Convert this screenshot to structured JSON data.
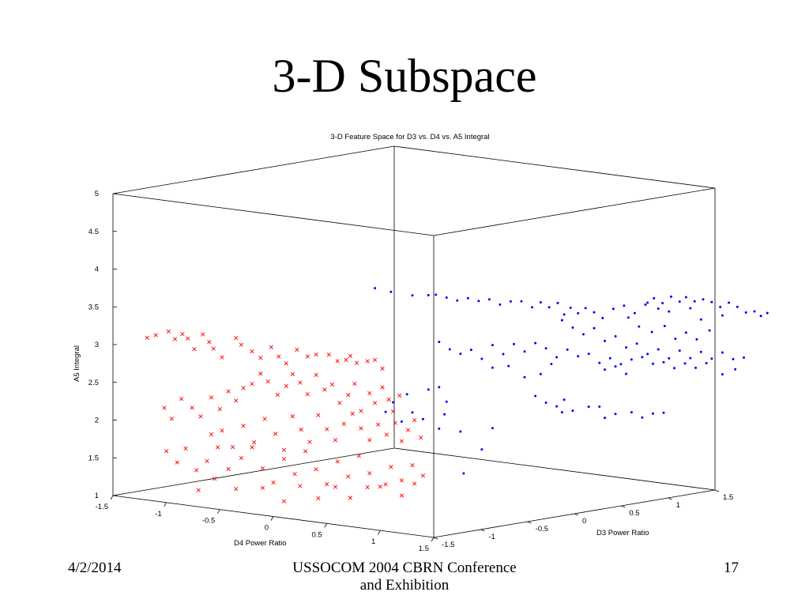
{
  "slide": {
    "title": "3-D Subspace",
    "footer_date": "4/2/2014",
    "footer_center_line1": "USSOCOM 2004 CBRN Conference",
    "footer_center_line2": "and Exhibition",
    "page_number": "17"
  },
  "chart_data": {
    "type": "scatter",
    "title": "3-D Feature Space for D3 vs. D4 vs. A5 Integral",
    "xlabel": "D4 Power Ratio",
    "ylabel": "D3 Power Ratio",
    "zlabel": "A5 Integral",
    "xlim": [
      -1.5,
      1.5
    ],
    "ylim": [
      -1.5,
      1.5
    ],
    "zlim": [
      1,
      5
    ],
    "x_ticks": [
      "-1.5",
      "-1",
      "-0.5",
      "0",
      "0.5",
      "1",
      "1.5"
    ],
    "y_ticks": [
      "-1.5",
      "-1",
      "-0.5",
      "0",
      "0.5",
      "1",
      "1.5"
    ],
    "z_ticks": [
      "1",
      "1.5",
      "2",
      "2.5",
      "3",
      "3.5",
      "4",
      "4.5",
      "5"
    ],
    "grid": false,
    "box": true,
    "colors": {
      "series_red": "#ff0000",
      "series_blue": "#0000ff"
    },
    "series": [
      {
        "marker": "x",
        "color": "#ff0000",
        "points_projected": [
          [
            -1.18,
            3.15
          ],
          [
            -1.1,
            3.2
          ],
          [
            -0.98,
            3.27
          ],
          [
            -0.92,
            3.18
          ],
          [
            -0.85,
            3.26
          ],
          [
            -0.8,
            3.21
          ],
          [
            -0.74,
            3.08
          ],
          [
            -0.66,
            3.29
          ],
          [
            -0.6,
            3.2
          ],
          [
            -0.56,
            3.12
          ],
          [
            -0.48,
            3.02
          ],
          [
            -0.35,
            3.3
          ],
          [
            -0.3,
            3.22
          ],
          [
            -0.2,
            3.15
          ],
          [
            -0.12,
            3.08
          ],
          [
            -0.02,
            3.24
          ],
          [
            0.05,
            3.13
          ],
          [
            0.12,
            3.05
          ],
          [
            0.22,
            3.25
          ],
          [
            0.32,
            3.18
          ],
          [
            0.4,
            3.22
          ],
          [
            0.52,
            3.24
          ],
          [
            0.6,
            3.17
          ],
          [
            0.68,
            3.2
          ],
          [
            0.72,
            3.26
          ],
          [
            0.78,
            3.18
          ],
          [
            0.88,
            3.22
          ],
          [
            0.95,
            3.25
          ],
          [
            1.02,
            3.15
          ],
          [
            -1.02,
            2.25
          ],
          [
            -0.95,
            2.12
          ],
          [
            -0.86,
            2.4
          ],
          [
            -0.76,
            2.3
          ],
          [
            -0.68,
            2.2
          ],
          [
            -0.58,
            2.47
          ],
          [
            -0.5,
            2.33
          ],
          [
            -0.42,
            2.58
          ],
          [
            -0.35,
            2.47
          ],
          [
            -0.28,
            2.65
          ],
          [
            -0.2,
            2.72
          ],
          [
            -0.12,
            2.87
          ],
          [
            -0.05,
            2.78
          ],
          [
            0.04,
            2.62
          ],
          [
            0.12,
            2.75
          ],
          [
            0.18,
            2.92
          ],
          [
            0.25,
            2.82
          ],
          [
            0.32,
            2.68
          ],
          [
            0.4,
            2.95
          ],
          [
            0.48,
            2.77
          ],
          [
            0.55,
            2.85
          ],
          [
            0.62,
            2.62
          ],
          [
            0.7,
            2.74
          ],
          [
            0.76,
            2.9
          ],
          [
            0.82,
            2.55
          ],
          [
            0.9,
            2.8
          ],
          [
            0.95,
            2.68
          ],
          [
            1.02,
            2.9
          ],
          [
            1.08,
            2.75
          ],
          [
            1.12,
            2.6
          ],
          [
            1.18,
            2.82
          ],
          [
            -0.58,
            1.98
          ],
          [
            -0.48,
            2.05
          ],
          [
            -0.38,
            1.85
          ],
          [
            -0.28,
            2.15
          ],
          [
            -0.18,
            1.95
          ],
          [
            -0.08,
            2.28
          ],
          [
            0.02,
            2.1
          ],
          [
            0.1,
            1.9
          ],
          [
            0.18,
            2.36
          ],
          [
            0.26,
            2.2
          ],
          [
            0.34,
            2.05
          ],
          [
            0.42,
            2.42
          ],
          [
            0.5,
            2.25
          ],
          [
            0.58,
            2.12
          ],
          [
            0.66,
            2.35
          ],
          [
            0.74,
            2.5
          ],
          [
            0.82,
            2.32
          ],
          [
            0.9,
            2.18
          ],
          [
            0.98,
            2.4
          ],
          [
            1.06,
            2.28
          ],
          [
            1.14,
            2.45
          ],
          [
            1.2,
            2.22
          ],
          [
            1.26,
            2.38
          ],
          [
            1.32,
            2.52
          ],
          [
            1.38,
            2.3
          ],
          [
            -1.0,
            1.68
          ],
          [
            -0.9,
            1.55
          ],
          [
            -0.82,
            1.75
          ],
          [
            -0.72,
            1.48
          ],
          [
            -0.62,
            1.62
          ],
          [
            -0.52,
            1.82
          ],
          [
            -0.42,
            1.55
          ],
          [
            -0.3,
            1.72
          ],
          [
            -0.2,
            1.88
          ],
          [
            -0.1,
            1.62
          ],
          [
            0.0,
            1.45
          ],
          [
            0.1,
            1.78
          ],
          [
            0.2,
            1.6
          ],
          [
            0.3,
            1.92
          ],
          [
            0.4,
            1.7
          ],
          [
            0.5,
            1.52
          ],
          [
            0.6,
            1.84
          ],
          [
            0.7,
            1.66
          ],
          [
            0.8,
            1.95
          ],
          [
            0.9,
            1.74
          ],
          [
            1.0,
            1.58
          ],
          [
            1.1,
            1.86
          ],
          [
            1.2,
            1.7
          ],
          [
            1.3,
            1.92
          ],
          [
            1.4,
            1.8
          ],
          [
            -0.7,
            1.22
          ],
          [
            -0.55,
            1.4
          ],
          [
            -0.35,
            1.3
          ],
          [
            -0.1,
            1.36
          ],
          [
            0.1,
            1.22
          ],
          [
            0.25,
            1.45
          ],
          [
            0.42,
            1.32
          ],
          [
            0.58,
            1.5
          ],
          [
            0.72,
            1.38
          ],
          [
            0.88,
            1.55
          ],
          [
            1.05,
            1.62
          ],
          [
            1.2,
            1.5
          ],
          [
            1.32,
            1.68
          ]
        ]
      },
      {
        "marker": "point",
        "color": "#0000ff",
        "points_projected": [
          [
            0.95,
            4.2
          ],
          [
            1.1,
            4.18
          ],
          [
            1.3,
            4.17
          ],
          [
            1.45,
            4.2
          ],
          [
            1.52,
            4.22
          ],
          [
            1.62,
            4.2
          ],
          [
            1.72,
            4.18
          ],
          [
            1.82,
            4.23
          ],
          [
            1.92,
            4.21
          ],
          [
            2.02,
            4.25
          ],
          [
            2.12,
            4.2
          ],
          [
            2.22,
            4.26
          ],
          [
            2.32,
            4.28
          ],
          [
            2.42,
            4.22
          ],
          [
            2.5,
            4.3
          ],
          [
            2.58,
            4.25
          ],
          [
            2.66,
            4.32
          ],
          [
            2.72,
            4.18
          ],
          [
            2.78,
            4.28
          ],
          [
            2.85,
            4.22
          ],
          [
            2.92,
            4.3
          ],
          [
            3.0,
            4.26
          ],
          [
            3.08,
            4.2
          ],
          [
            3.18,
            4.34
          ],
          [
            3.28,
            4.4
          ],
          [
            3.38,
            4.32
          ],
          [
            3.48,
            4.45
          ],
          [
            3.56,
            4.55
          ],
          [
            3.64,
            4.5
          ],
          [
            3.72,
            4.6
          ],
          [
            3.8,
            4.55
          ],
          [
            3.86,
            4.62
          ],
          [
            3.94,
            4.58
          ],
          [
            4.02,
            4.62
          ],
          [
            4.1,
            4.6
          ],
          [
            4.18,
            4.55
          ],
          [
            4.26,
            4.62
          ],
          [
            4.34,
            4.58
          ],
          [
            4.42,
            4.52
          ],
          [
            4.5,
            4.55
          ],
          [
            4.56,
            4.5
          ],
          [
            4.62,
            4.55
          ],
          [
            3.5,
            4.48
          ],
          [
            3.6,
            4.42
          ],
          [
            3.7,
            4.4
          ],
          [
            3.9,
            4.48
          ],
          [
            4.0,
            4.35
          ],
          [
            4.2,
            4.44
          ],
          [
            3.32,
            4.25
          ],
          [
            3.42,
            4.15
          ],
          [
            3.54,
            4.1
          ],
          [
            3.66,
            4.2
          ],
          [
            3.76,
            4.05
          ],
          [
            3.86,
            4.15
          ],
          [
            3.96,
            4.08
          ],
          [
            4.08,
            4.22
          ],
          [
            2.7,
            4.1
          ],
          [
            2.8,
            4.02
          ],
          [
            2.9,
            3.95
          ],
          [
            3.0,
            4.05
          ],
          [
            3.1,
            3.9
          ],
          [
            3.2,
            3.98
          ],
          [
            3.3,
            3.85
          ],
          [
            3.4,
            3.92
          ],
          [
            3.5,
            3.8
          ],
          [
            3.6,
            3.88
          ],
          [
            3.7,
            3.78
          ],
          [
            3.8,
            3.9
          ],
          [
            3.9,
            3.82
          ],
          [
            4.0,
            3.92
          ],
          [
            4.1,
            3.85
          ],
          [
            4.2,
            3.95
          ],
          [
            4.3,
            3.88
          ],
          [
            4.4,
            3.92
          ],
          [
            2.75,
            3.72
          ],
          [
            2.85,
            3.65
          ],
          [
            2.95,
            3.7
          ],
          [
            3.05,
            3.6
          ],
          [
            3.15,
            3.68
          ],
          [
            3.25,
            3.62
          ],
          [
            3.35,
            3.7
          ],
          [
            3.45,
            3.75
          ],
          [
            3.55,
            3.68
          ],
          [
            3.65,
            3.72
          ],
          [
            3.75,
            3.66
          ],
          [
            3.85,
            3.74
          ],
          [
            3.95,
            3.7
          ],
          [
            4.05,
            3.78
          ],
          [
            4.2,
            3.66
          ],
          [
            4.32,
            3.75
          ],
          [
            3.1,
            3.52
          ],
          [
            3.2,
            3.58
          ],
          [
            3.3,
            3.5
          ],
          [
            1.55,
            3.6
          ],
          [
            1.65,
            3.52
          ],
          [
            1.75,
            3.48
          ],
          [
            1.85,
            3.55
          ],
          [
            1.95,
            3.45
          ],
          [
            2.05,
            3.65
          ],
          [
            2.15,
            3.55
          ],
          [
            2.25,
            3.7
          ],
          [
            2.35,
            3.62
          ],
          [
            2.45,
            3.75
          ],
          [
            2.55,
            3.7
          ],
          [
            2.65,
            3.6
          ],
          [
            2.05,
            3.35
          ],
          [
            2.2,
            3.4
          ],
          [
            2.35,
            3.28
          ],
          [
            2.5,
            3.35
          ],
          [
            2.6,
            3.5
          ],
          [
            2.45,
            3.05
          ],
          [
            2.55,
            2.98
          ],
          [
            2.65,
            2.95
          ],
          [
            2.72,
            3.05
          ],
          [
            2.8,
            2.92
          ],
          [
            2.95,
            3.0
          ],
          [
            3.05,
            3.02
          ],
          [
            3.2,
            2.95
          ],
          [
            3.35,
            3.0
          ],
          [
            3.45,
            2.95
          ],
          [
            3.55,
            3.02
          ],
          [
            3.65,
            3.05
          ],
          [
            3.1,
            2.88
          ],
          [
            2.7,
            2.88
          ],
          [
            1.45,
            2.95
          ],
          [
            1.55,
            3.0
          ],
          [
            1.62,
            2.82
          ],
          [
            1.6,
            2.65
          ],
          [
            1.55,
            2.45
          ],
          [
            1.4,
            2.55
          ],
          [
            1.3,
            2.62
          ],
          [
            1.2,
            2.48
          ],
          [
            1.12,
            2.72
          ],
          [
            1.25,
            2.85
          ],
          [
            1.05,
            2.58
          ],
          [
            1.75,
            2.45
          ],
          [
            1.95,
            2.25
          ],
          [
            1.78,
            1.9
          ],
          [
            2.05,
            2.55
          ]
        ]
      }
    ]
  }
}
